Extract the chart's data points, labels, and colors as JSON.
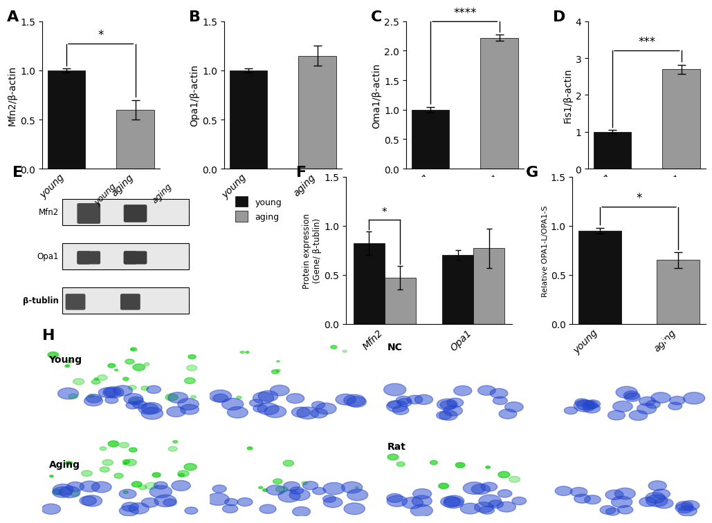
{
  "panel_A": {
    "categories": [
      "young",
      "aging"
    ],
    "values": [
      1.0,
      0.6
    ],
    "errors": [
      0.02,
      0.1
    ],
    "colors": [
      "#111111",
      "#999999"
    ],
    "ylabel": "Mfn2/β-actin",
    "ylim": [
      0,
      1.5
    ],
    "yticks": [
      0.0,
      0.5,
      1.0,
      1.5
    ],
    "sig": "*",
    "label": "A"
  },
  "panel_B": {
    "categories": [
      "young",
      "aging"
    ],
    "values": [
      1.0,
      1.15
    ],
    "errors": [
      0.02,
      0.1
    ],
    "colors": [
      "#111111",
      "#999999"
    ],
    "ylabel": "Opa1/β-actin",
    "ylim": [
      0,
      1.5
    ],
    "yticks": [
      0.0,
      0.5,
      1.0,
      1.5
    ],
    "sig": null,
    "label": "B"
  },
  "panel_C": {
    "categories": [
      "young",
      "aging"
    ],
    "values": [
      1.0,
      2.22
    ],
    "errors": [
      0.05,
      0.05
    ],
    "colors": [
      "#111111",
      "#999999"
    ],
    "ylabel": "Oma1/β-actin",
    "ylim": [
      0,
      2.5
    ],
    "yticks": [
      0.0,
      0.5,
      1.0,
      1.5,
      2.0,
      2.5
    ],
    "sig": "****",
    "label": "C"
  },
  "panel_D": {
    "categories": [
      "young",
      "aging"
    ],
    "values": [
      1.0,
      2.7
    ],
    "errors": [
      0.05,
      0.12
    ],
    "colors": [
      "#111111",
      "#999999"
    ],
    "ylabel": "Fis1/β-actin",
    "ylim": [
      0,
      4
    ],
    "yticks": [
      0,
      1,
      2,
      3,
      4
    ],
    "sig": "***",
    "label": "D"
  },
  "panel_F": {
    "groups": [
      "Mfn2",
      "Opa1"
    ],
    "young_vals": [
      0.82,
      0.7
    ],
    "aging_vals": [
      0.47,
      0.77
    ],
    "young_errs": [
      0.12,
      0.05
    ],
    "aging_errs": [
      0.12,
      0.2
    ],
    "colors_young": "#111111",
    "colors_aging": "#999999",
    "ylabel": "Protein expression\n(Gene/ β-tublin)",
    "ylim": [
      0,
      1.5
    ],
    "yticks": [
      0.0,
      0.5,
      1.0,
      1.5
    ],
    "sig": "*",
    "label": "F"
  },
  "panel_G": {
    "categories": [
      "young",
      "aging"
    ],
    "values": [
      0.95,
      0.65
    ],
    "errors": [
      0.03,
      0.08
    ],
    "colors": [
      "#111111",
      "#999999"
    ],
    "ylabel": "Relative OPA1-L/OPA1-S",
    "ylim": [
      0,
      1.5
    ],
    "yticks": [
      0.0,
      0.5,
      1.0,
      1.5
    ],
    "sig": "*",
    "label": "G"
  },
  "legend": {
    "young_color": "#111111",
    "aging_color": "#999999",
    "young_label": "young",
    "aging_label": "aging"
  },
  "panel_labels_fontsize": 16,
  "tick_label_fontsize": 10,
  "axis_label_fontsize": 10,
  "background_color": "#ffffff"
}
